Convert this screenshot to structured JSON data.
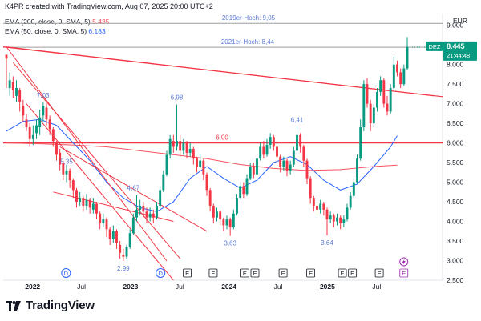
{
  "header": {
    "text": "K4PR created with TradingView.com, Aug 07, 2025 20:00 UTC+2"
  },
  "legend": [
    {
      "label": "EMA (200, close, 0, SMA, 5)",
      "value": "5.435",
      "color": "#f7525f"
    },
    {
      "label": "EMA (50, close, 0, SMA, 5)",
      "value": "6.183",
      "color": "#2962ff"
    }
  ],
  "brand": {
    "name": "TradingView"
  },
  "chart_data": {
    "type": "candlestick",
    "currency": "EUR",
    "ylim": [
      2.5,
      9.3
    ],
    "y_ticks": [
      "2.500",
      "3.000",
      "3.500",
      "4.000",
      "4.500",
      "5.000",
      "5.500",
      "6.000",
      "6.500",
      "7.000",
      "7.500",
      "8.000",
      "8.500",
      "9.000"
    ],
    "x_ticks": [
      {
        "label": "2022",
        "t": 0.067
      },
      {
        "label": "Jul",
        "t": 0.178
      },
      {
        "label": "2023",
        "t": 0.29
      },
      {
        "label": "Jul",
        "t": 0.402
      },
      {
        "label": "2024",
        "t": 0.514
      },
      {
        "label": "Jul",
        "t": 0.626
      },
      {
        "label": "2025",
        "t": 0.738
      },
      {
        "label": "Jul",
        "t": 0.85
      }
    ],
    "candles": [
      [
        8.25,
        8.15,
        8.2,
        7.4
      ],
      [
        7.4,
        7.6,
        7.8,
        7.2
      ],
      [
        7.55,
        7.35,
        7.7,
        7.15
      ],
      [
        7.2,
        7.4,
        7.6,
        7.05
      ],
      [
        7.35,
        7.05,
        7.4,
        6.8
      ],
      [
        6.95,
        6.7,
        7.1,
        6.55
      ],
      [
        6.6,
        6.4,
        6.75,
        6.3
      ],
      [
        6.4,
        6.1,
        6.5,
        5.9
      ],
      [
        6.1,
        6.2,
        6.45,
        5.95
      ],
      [
        6.25,
        6.45,
        6.6,
        6.1
      ],
      [
        6.4,
        6.65,
        6.85,
        6.2
      ],
      [
        6.7,
        6.95,
        7.03,
        6.55
      ],
      [
        6.9,
        6.6,
        7.0,
        6.45
      ],
      [
        6.6,
        6.35,
        6.7,
        6.2
      ],
      [
        6.35,
        6.05,
        6.4,
        5.9
      ],
      [
        6.0,
        5.7,
        6.05,
        5.55
      ],
      [
        5.75,
        5.45,
        5.85,
        5.3
      ],
      [
        5.5,
        5.2,
        5.55,
        5.05
      ],
      [
        5.2,
        5.3,
        5.45,
        5.0
      ],
      [
        5.3,
        5.05,
        5.35,
        4.85
      ],
      [
        5.05,
        4.8,
        5.1,
        4.6
      ],
      [
        4.8,
        4.5,
        4.85,
        4.35
      ],
      [
        4.5,
        4.6,
        4.75,
        4.4
      ],
      [
        4.6,
        4.4,
        4.65,
        4.25
      ],
      [
        4.4,
        4.55,
        4.7,
        4.3
      ],
      [
        4.55,
        4.35,
        4.6,
        4.2
      ],
      [
        4.3,
        4.45,
        4.6,
        4.2
      ],
      [
        4.45,
        4.2,
        4.5,
        4.05
      ],
      [
        4.2,
        3.95,
        4.25,
        3.8
      ],
      [
        3.95,
        4.05,
        4.2,
        3.85
      ],
      [
        4.05,
        3.8,
        4.1,
        3.6
      ],
      [
        3.8,
        3.55,
        3.85,
        3.4
      ],
      [
        3.55,
        3.75,
        3.9,
        3.45
      ],
      [
        3.75,
        3.45,
        3.8,
        3.3
      ],
      [
        3.4,
        3.2,
        3.5,
        3.05
      ],
      [
        3.15,
        3.1,
        3.3,
        2.99
      ],
      [
        3.1,
        3.35,
        3.4,
        3.05
      ],
      [
        3.35,
        3.7,
        3.8,
        3.3
      ],
      [
        3.7,
        4.1,
        4.2,
        3.65
      ],
      [
        4.1,
        4.3,
        4.67,
        4.0
      ],
      [
        4.3,
        4.4,
        4.55,
        4.15
      ],
      [
        4.4,
        4.25,
        4.5,
        4.1
      ],
      [
        4.25,
        4.1,
        4.35,
        3.95
      ],
      [
        4.1,
        4.2,
        4.35,
        4.0
      ],
      [
        4.2,
        4.1,
        4.3,
        3.95
      ],
      [
        4.1,
        4.4,
        4.5,
        4.05
      ],
      [
        4.4,
        4.8,
        4.9,
        4.35
      ],
      [
        4.8,
        5.2,
        5.3,
        4.75
      ],
      [
        5.2,
        5.7,
        5.8,
        5.15
      ],
      [
        5.7,
        6.1,
        6.2,
        5.6
      ],
      [
        6.05,
        5.9,
        6.2,
        5.75
      ],
      [
        5.9,
        6.05,
        6.98,
        5.8
      ],
      [
        6.05,
        5.8,
        6.2,
        5.65
      ],
      [
        5.8,
        6.0,
        6.1,
        5.7
      ],
      [
        6.0,
        5.75,
        6.05,
        5.6
      ],
      [
        5.75,
        5.85,
        6.0,
        5.65
      ],
      [
        5.85,
        5.6,
        5.9,
        5.45
      ],
      [
        5.6,
        5.4,
        5.65,
        5.25
      ],
      [
        5.4,
        5.55,
        5.7,
        5.35
      ],
      [
        5.55,
        5.2,
        5.6,
        5.05
      ],
      [
        5.2,
        4.8,
        5.25,
        4.65
      ],
      [
        4.8,
        4.4,
        4.85,
        4.25
      ],
      [
        4.4,
        4.1,
        4.45,
        3.95
      ],
      [
        4.1,
        4.25,
        4.35,
        4.0
      ],
      [
        4.25,
        4.05,
        4.3,
        3.9
      ],
      [
        4.05,
        3.9,
        4.1,
        3.75
      ],
      [
        3.9,
        4.05,
        4.15,
        3.8
      ],
      [
        4.05,
        3.85,
        4.1,
        3.63
      ],
      [
        3.85,
        4.2,
        4.3,
        3.8
      ],
      [
        4.2,
        4.6,
        4.7,
        4.15
      ],
      [
        4.6,
        4.9,
        5.0,
        4.55
      ],
      [
        4.9,
        4.7,
        5.0,
        4.6
      ],
      [
        4.7,
        5.1,
        5.2,
        4.65
      ],
      [
        5.1,
        5.4,
        5.5,
        5.05
      ],
      [
        5.4,
        5.2,
        5.5,
        5.1
      ],
      [
        5.2,
        5.6,
        5.7,
        5.15
      ],
      [
        5.6,
        5.9,
        6.0,
        5.55
      ],
      [
        5.9,
        5.7,
        6.05,
        5.6
      ],
      [
        5.7,
        5.95,
        6.1,
        5.65
      ],
      [
        5.95,
        6.15,
        6.25,
        5.85
      ],
      [
        6.15,
        5.9,
        6.2,
        5.8
      ],
      [
        5.9,
        5.65,
        5.95,
        5.5
      ],
      [
        5.65,
        5.4,
        5.7,
        5.25
      ],
      [
        5.4,
        5.55,
        5.65,
        5.3
      ],
      [
        5.55,
        5.3,
        5.6,
        5.15
      ],
      [
        5.3,
        5.45,
        5.55,
        5.2
      ],
      [
        5.45,
        5.8,
        5.9,
        5.4
      ],
      [
        5.8,
        6.2,
        6.41,
        5.75
      ],
      [
        6.2,
        5.9,
        6.25,
        5.75
      ],
      [
        5.9,
        5.55,
        5.95,
        5.4
      ],
      [
        5.55,
        5.1,
        5.6,
        4.95
      ],
      [
        5.1,
        4.6,
        5.15,
        4.45
      ],
      [
        4.6,
        4.4,
        4.65,
        4.25
      ],
      [
        4.4,
        4.3,
        4.5,
        4.15
      ],
      [
        4.3,
        4.45,
        4.55,
        4.2
      ],
      [
        4.45,
        4.3,
        4.5,
        4.15
      ],
      [
        4.3,
        4.05,
        4.35,
        3.64
      ],
      [
        4.05,
        4.15,
        4.25,
        3.95
      ],
      [
        4.15,
        4.0,
        4.2,
        3.85
      ],
      [
        4.0,
        4.1,
        4.2,
        3.9
      ],
      [
        4.1,
        3.95,
        4.15,
        3.8
      ],
      [
        3.95,
        4.05,
        4.15,
        3.85
      ],
      [
        4.05,
        4.35,
        4.45,
        4.0
      ],
      [
        4.35,
        4.65,
        4.75,
        4.3
      ],
      [
        4.65,
        5.0,
        5.1,
        4.6
      ],
      [
        5.0,
        5.6,
        5.7,
        4.95
      ],
      [
        5.6,
        6.4,
        6.6,
        5.55
      ],
      [
        6.4,
        7.5,
        7.6,
        6.3
      ],
      [
        7.5,
        7.0,
        7.65,
        6.9
      ],
      [
        7.0,
        6.5,
        7.1,
        6.3
      ],
      [
        6.5,
        6.9,
        7.0,
        6.4
      ],
      [
        6.9,
        7.3,
        7.4,
        6.8
      ],
      [
        7.3,
        7.6,
        7.7,
        7.2
      ],
      [
        7.6,
        7.0,
        7.65,
        6.9
      ],
      [
        7.0,
        6.8,
        7.2,
        6.7
      ],
      [
        6.8,
        7.4,
        7.5,
        6.75
      ],
      [
        7.4,
        8.0,
        8.2,
        7.35
      ],
      [
        8.0,
        7.8,
        8.1,
        7.7
      ],
      [
        7.8,
        7.5,
        7.9,
        7.4
      ],
      [
        7.5,
        7.9,
        8.0,
        7.45
      ],
      [
        7.9,
        8.445,
        8.7,
        7.85
      ]
    ],
    "ema200": [
      [
        0,
        6.0
      ],
      [
        10,
        5.98
      ],
      [
        20,
        5.95
      ],
      [
        30,
        5.9
      ],
      [
        40,
        5.8
      ],
      [
        50,
        5.7
      ],
      [
        60,
        5.6
      ],
      [
        70,
        5.45
      ],
      [
        80,
        5.35
      ],
      [
        90,
        5.3
      ],
      [
        100,
        5.32
      ],
      [
        110,
        5.4
      ],
      [
        117,
        5.435
      ]
    ],
    "ema50": [
      [
        0,
        6.3
      ],
      [
        5,
        6.55
      ],
      [
        10,
        6.6
      ],
      [
        15,
        6.45
      ],
      [
        20,
        6.0
      ],
      [
        25,
        5.55
      ],
      [
        30,
        5.0
      ],
      [
        35,
        4.6
      ],
      [
        40,
        4.35
      ],
      [
        45,
        4.25
      ],
      [
        50,
        4.5
      ],
      [
        55,
        5.1
      ],
      [
        60,
        5.4
      ],
      [
        65,
        5.1
      ],
      [
        70,
        4.85
      ],
      [
        75,
        5.05
      ],
      [
        80,
        5.5
      ],
      [
        85,
        5.65
      ],
      [
        90,
        5.45
      ],
      [
        95,
        5.05
      ],
      [
        100,
        4.8
      ],
      [
        105,
        4.95
      ],
      [
        110,
        5.4
      ],
      [
        115,
        5.9
      ],
      [
        117,
        6.183
      ]
    ],
    "horizontal_lines": [
      {
        "label": "2019er-Hoch: 9,05",
        "y": 9.05,
        "color": "#9e9e9e"
      },
      {
        "label": "2021er-Hoch: 8,44",
        "y": 8.44,
        "color": "#9e9e9e"
      },
      {
        "label": "6,00",
        "y": 6.0,
        "color": "#f23645"
      }
    ],
    "trend_lines": [
      {
        "x1": 0,
        "y1": 8.45,
        "x2": 128,
        "y2": 7.2,
        "color": "#f23645"
      },
      {
        "x1": 0,
        "y1": 8.45,
        "x2": 48,
        "y2": 2.99,
        "color": "#f23645"
      },
      {
        "x1": 2,
        "y1": 8.05,
        "x2": 52,
        "y2": 3.05,
        "color": "#f23645"
      },
      {
        "x1": 6,
        "y1": 7.0,
        "x2": 50,
        "y2": 2.5,
        "color": "#f23645"
      },
      {
        "x1": 16,
        "y1": 5.9,
        "x2": 60,
        "y2": 3.75,
        "color": "#f23645"
      },
      {
        "x1": 14,
        "y1": 4.75,
        "x2": 50,
        "y2": 4.0,
        "color": "#f23645"
      }
    ],
    "price_labels": [
      {
        "text": "7,03",
        "idx": 11,
        "y": 7.03
      },
      {
        "text": "5,35",
        "idx": 18,
        "y": 5.35
      },
      {
        "text": "4,67",
        "idx": 38,
        "y": 4.67
      },
      {
        "text": "2,99",
        "idx": 35,
        "y": 2.99
      },
      {
        "text": "6,98",
        "idx": 51,
        "y": 6.98
      },
      {
        "text": "3,63",
        "idx": 67,
        "y": 3.63
      },
      {
        "text": "6,41",
        "idx": 87,
        "y": 6.41
      },
      {
        "text": "3,64",
        "idx": 96,
        "y": 3.64
      }
    ],
    "current": {
      "symbol": "DEZ",
      "price": "8.445",
      "time": "21:44:48",
      "color": "#089981"
    },
    "events": [
      {
        "type": "D",
        "t": 0.143
      },
      {
        "type": "D",
        "t": 0.358
      },
      {
        "type": "E",
        "t": 0.419
      },
      {
        "type": "E",
        "t": 0.478
      },
      {
        "type": "E",
        "t": 0.55
      },
      {
        "type": "E",
        "t": 0.573
      },
      {
        "type": "E",
        "t": 0.637
      },
      {
        "type": "E",
        "t": 0.7
      },
      {
        "type": "E",
        "t": 0.772
      },
      {
        "type": "E",
        "t": 0.795
      },
      {
        "type": "E",
        "t": 0.856
      }
    ]
  }
}
